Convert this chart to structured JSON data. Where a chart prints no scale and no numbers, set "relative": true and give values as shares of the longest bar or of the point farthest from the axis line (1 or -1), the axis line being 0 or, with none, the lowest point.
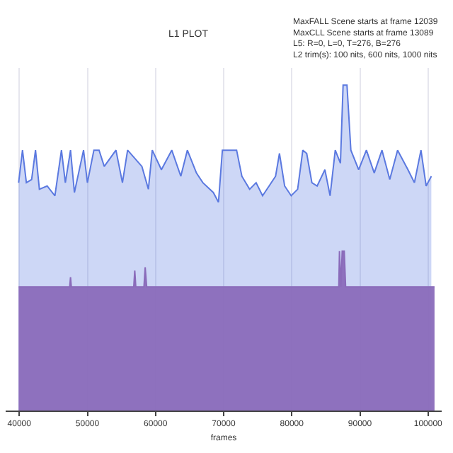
{
  "chart_data": {
    "type": "area",
    "title": "L1 PLOT",
    "xlabel": "frames",
    "relative": true,
    "annotations": [
      "MaxFALL Scene starts at frame 12039",
      "MaxCLL Scene starts at frame 13089",
      "L5: R=0, L=0, T=276, B=276",
      "L2 trim(s): 100 nits, 600 nits, 1000 nits"
    ],
    "xlim": [
      38000,
      102000
    ],
    "xticks": [
      40000,
      50000,
      60000,
      70000,
      80000,
      90000,
      100000
    ],
    "grid": "x",
    "series": [
      {
        "color": "#5b79e0",
        "x": [
          39900,
          40470,
          41040,
          41810,
          42380,
          42950,
          44090,
          45230,
          46190,
          46760,
          47520,
          48090,
          49430,
          50000,
          50950,
          51710,
          52470,
          54190,
          55140,
          55900,
          58000,
          58950,
          59520,
          60860,
          62380,
          63710,
          64670,
          66000,
          66950,
          68480,
          69240,
          69810,
          71900,
          72670,
          73810,
          74760,
          75710,
          76670,
          77620,
          78190,
          78950,
          79910,
          80860,
          81620,
          82190,
          82950,
          83720,
          84860,
          85620,
          86380,
          87140,
          87530,
          88100,
          88670,
          89810,
          90950,
          92100,
          93240,
          94380,
          95530,
          97050,
          98000,
          98960,
          99720,
          100480
        ],
        "values": [
          0.7,
          0.8,
          0.7,
          0.71,
          0.8,
          0.68,
          0.69,
          0.66,
          0.8,
          0.7,
          0.8,
          0.67,
          0.8,
          0.7,
          0.8,
          0.8,
          0.75,
          0.8,
          0.7,
          0.8,
          0.75,
          0.68,
          0.8,
          0.74,
          0.8,
          0.72,
          0.8,
          0.73,
          0.7,
          0.67,
          0.64,
          0.8,
          0.8,
          0.72,
          0.68,
          0.7,
          0.66,
          0.69,
          0.72,
          0.79,
          0.69,
          0.66,
          0.68,
          0.8,
          0.79,
          0.7,
          0.69,
          0.74,
          0.66,
          0.8,
          0.76,
          1.0,
          1.0,
          0.8,
          0.74,
          0.8,
          0.73,
          0.8,
          0.71,
          0.8,
          0.74,
          0.7,
          0.8,
          0.69,
          0.72
        ]
      },
      {
        "color": "#8a6bba",
        "x": [
          39900,
          47400,
          47520,
          47640,
          56800,
          56950,
          57100,
          58300,
          58480,
          58700,
          86900,
          87000,
          87200,
          87400,
          87700,
          87900,
          100950
        ],
        "values": [
          0.38,
          0.38,
          0.41,
          0.38,
          0.38,
          0.43,
          0.38,
          0.38,
          0.44,
          0.38,
          0.38,
          0.49,
          0.38,
          0.49,
          0.49,
          0.38,
          0.38
        ]
      }
    ]
  }
}
